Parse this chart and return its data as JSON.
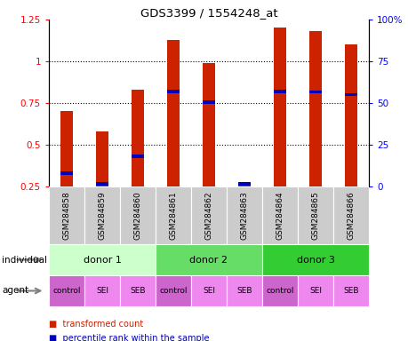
{
  "title": "GDS3399 / 1554248_at",
  "samples": [
    "GSM284858",
    "GSM284859",
    "GSM284860",
    "GSM284861",
    "GSM284862",
    "GSM284863",
    "GSM284864",
    "GSM284865",
    "GSM284866"
  ],
  "red_values": [
    0.7,
    0.58,
    0.83,
    1.13,
    0.99,
    0.27,
    1.2,
    1.18,
    1.1
  ],
  "blue_values": [
    0.33,
    0.265,
    0.43,
    0.82,
    0.755,
    0.265,
    0.82,
    0.815,
    0.8
  ],
  "ylim": [
    0.25,
    1.25
  ],
  "yticks_left": [
    0.25,
    0.5,
    0.75,
    1.0,
    1.25
  ],
  "ytick_labels_left": [
    "0.25",
    "0.5",
    "0.75",
    "1",
    "1.25"
  ],
  "ytick_labels_right": [
    "0",
    "25",
    "50",
    "75",
    "100%"
  ],
  "donors": [
    {
      "label": "donor 1",
      "start": 0,
      "end": 3,
      "color": "#ccffcc"
    },
    {
      "label": "donor 2",
      "start": 3,
      "end": 6,
      "color": "#66dd66"
    },
    {
      "label": "donor 3",
      "start": 6,
      "end": 9,
      "color": "#33cc33"
    }
  ],
  "agents": [
    "control",
    "SEI",
    "SEB",
    "control",
    "SEI",
    "SEB",
    "control",
    "SEI",
    "SEB"
  ],
  "agent_colors": [
    "#cc66cc",
    "#ee88ee",
    "#ee88ee",
    "#cc66cc",
    "#ee88ee",
    "#ee88ee",
    "#cc66cc",
    "#ee88ee",
    "#ee88ee"
  ],
  "bar_color_red": "#cc2200",
  "bar_color_blue": "#0000bb",
  "sample_bg_color": "#cccccc",
  "individual_label": "individual",
  "agent_label": "agent",
  "legend_red": "transformed count",
  "legend_blue": "percentile rank within the sample",
  "bar_width": 0.35,
  "blue_bar_height": 0.018
}
